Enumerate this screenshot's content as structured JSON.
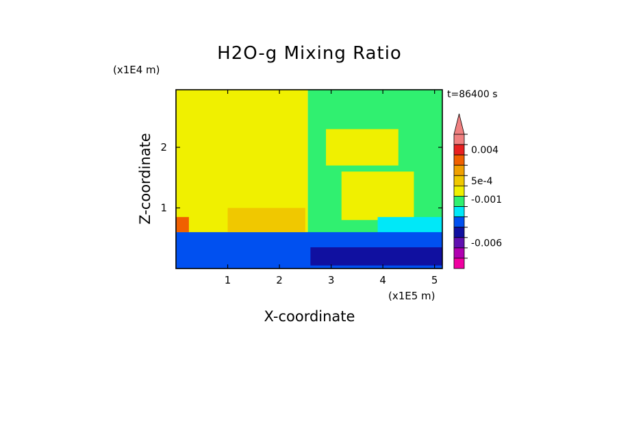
{
  "chart_data": {
    "type": "heatmap",
    "title": "H2O-g Mixing Ratio",
    "xlabel": "X-coordinate",
    "ylabel": "Z-coordinate",
    "x_unit": "(x1E5 m)",
    "y_unit": "(x1E4 m)",
    "time_label": "t=86400 s",
    "xlim": [
      0,
      5.15
    ],
    "ylim": [
      0,
      2.95
    ],
    "x_ticks": [
      1,
      2,
      3,
      4,
      5
    ],
    "y_ticks": [
      1,
      2
    ],
    "colorbar": {
      "extend_top": true,
      "levels": [
        {
          "color": "#f08080"
        },
        {
          "color": "#e82020"
        },
        {
          "color": "#f06000"
        },
        {
          "color": "#f0a000"
        },
        {
          "color": "#f0c800"
        },
        {
          "color": "#f0f000"
        },
        {
          "color": "#30f070"
        },
        {
          "color": "#00e8f8"
        },
        {
          "color": "#0050f0"
        },
        {
          "color": "#1010a0"
        },
        {
          "color": "#6010b0"
        },
        {
          "color": "#b000b0"
        },
        {
          "color": "#f000a0"
        }
      ],
      "tick_labels": [
        {
          "text": "0.004",
          "level": 1.5
        },
        {
          "text": "5e-4",
          "level": 4.5
        },
        {
          "text": "-0.001",
          "level": 6.3
        },
        {
          "text": "-0.006",
          "level": 10.5
        }
      ]
    },
    "regions": [
      {
        "color": "#f0f000",
        "x": [
          0,
          2.55
        ],
        "z": [
          0,
          2.95
        ]
      },
      {
        "color": "#30f070",
        "x": [
          2.55,
          5.15
        ],
        "z": [
          0,
          2.95
        ]
      },
      {
        "color": "#f0f000",
        "x": [
          3.2,
          4.6
        ],
        "z": [
          0.8,
          1.6
        ]
      },
      {
        "color": "#f0f000",
        "x": [
          2.9,
          4.3
        ],
        "z": [
          1.7,
          2.3
        ]
      },
      {
        "color": "#00e8f8",
        "x": [
          3.9,
          5.15
        ],
        "z": [
          0.55,
          0.85
        ]
      },
      {
        "color": "#0050f0",
        "x": [
          0,
          5.15
        ],
        "z": [
          0,
          0.6
        ]
      },
      {
        "color": "#1010a0",
        "x": [
          2.6,
          5.15
        ],
        "z": [
          0.05,
          0.35
        ]
      },
      {
        "color": "#f06000",
        "x": [
          0,
          0.25
        ],
        "z": [
          0.6,
          0.85
        ]
      },
      {
        "color": "#f0c800",
        "x": [
          1.0,
          2.5
        ],
        "z": [
          0.6,
          1.0
        ]
      }
    ]
  }
}
